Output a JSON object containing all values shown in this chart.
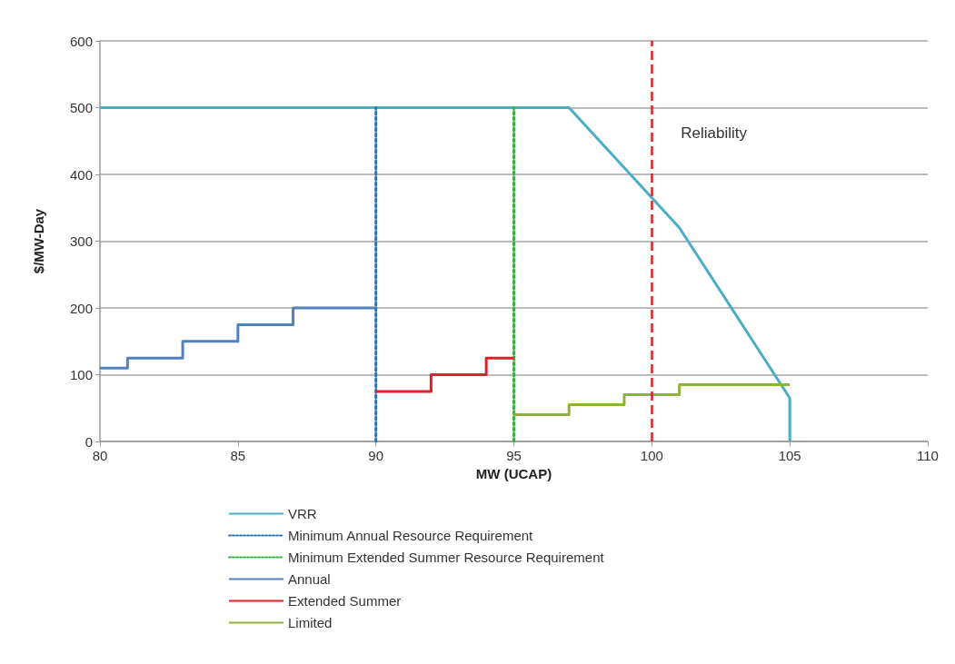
{
  "chart_data": {
    "type": "line",
    "xlabel": "MW (UCAP)",
    "ylabel": "$/MW-Day",
    "xlim": [
      80,
      110
    ],
    "xticks": [
      80,
      85,
      90,
      95,
      100,
      105,
      110
    ],
    "ylim": [
      0,
      600
    ],
    "yticks": [
      0,
      100,
      200,
      300,
      400,
      500,
      600
    ],
    "grid": "y",
    "legend": "bottom",
    "marker": "none",
    "series": [
      {
        "name": "VRR",
        "color": "#4bacc6",
        "line_style": "solid",
        "x": [
          80,
          97,
          101,
          105,
          105
        ],
        "values": [
          500,
          500,
          320,
          65,
          0
        ]
      },
      {
        "name": "Minimum Annual Resource Requirement",
        "color": "#2e75b6",
        "line_style": "dotted",
        "x": [
          90,
          90
        ],
        "values": [
          0,
          500
        ]
      },
      {
        "name": "Minimum Extended Summer Resource Requirement",
        "color": "#3cb043",
        "line_style": "dotted",
        "x": [
          95,
          95
        ],
        "values": [
          0,
          500
        ]
      },
      {
        "name": "Annual",
        "type": "step",
        "color": "#4f81bd",
        "line_style": "solid",
        "x": [
          80,
          81,
          83,
          85,
          87,
          90
        ],
        "values": [
          110,
          125,
          150,
          175,
          200,
          200
        ]
      },
      {
        "name": "Extended Summer",
        "type": "step",
        "color": "#e0202a",
        "line_style": "solid",
        "x": [
          90,
          92,
          94,
          95
        ],
        "values": [
          75,
          100,
          125,
          125
        ]
      },
      {
        "name": "Limited",
        "type": "step",
        "color": "#8db33a",
        "line_style": "solid",
        "x": [
          95,
          97,
          99,
          101,
          105
        ],
        "values": [
          40,
          55,
          70,
          85,
          85
        ]
      }
    ],
    "ref_lines": [
      {
        "axis": "x",
        "value": 100,
        "label": "Reliability",
        "color": "#e02020",
        "line_style": "dashed"
      }
    ]
  }
}
